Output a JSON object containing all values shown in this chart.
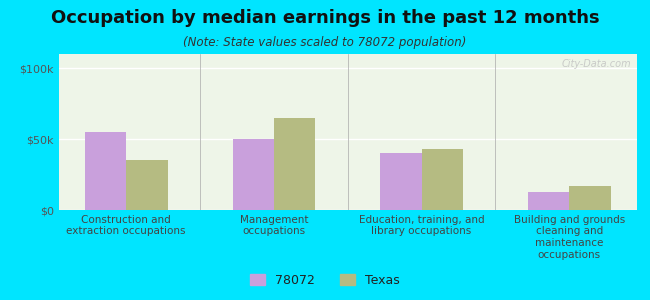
{
  "title": "Occupation by median earnings in the past 12 months",
  "subtitle": "(Note: State values scaled to 78072 population)",
  "categories": [
    "Construction and\nextraction occupations",
    "Management\noccupations",
    "Education, training, and\nlibrary occupations",
    "Building and grounds\ncleaning and\nmaintenance\noccupations"
  ],
  "values_78072": [
    55000,
    50000,
    40000,
    13000
  ],
  "values_texas": [
    35000,
    65000,
    43000,
    17000
  ],
  "color_78072": "#c9a0dc",
  "color_texas": "#b5bb82",
  "background_outer": "#00e5ff",
  "background_plot": "#eef5e8",
  "ylabel_ticks": [
    "$0",
    "$50k",
    "$100k"
  ],
  "ytick_values": [
    0,
    50000,
    100000
  ],
  "ylim": [
    0,
    110000
  ],
  "bar_width": 0.28,
  "legend_label_78072": "78072",
  "legend_label_texas": "Texas",
  "watermark": "City-Data.com",
  "title_fontsize": 13,
  "subtitle_fontsize": 8.5,
  "tick_fontsize": 8,
  "label_fontsize": 7.5
}
